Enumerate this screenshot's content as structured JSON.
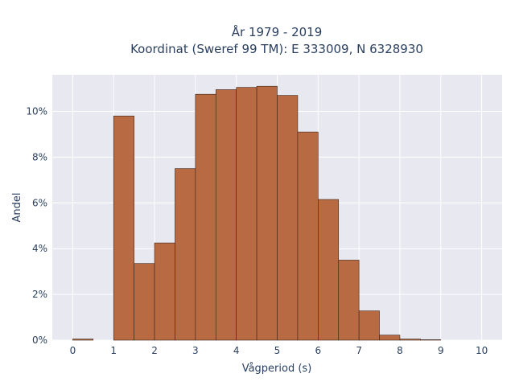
{
  "chart_data": {
    "type": "bar",
    "title_line1": "År 1979 - 2019",
    "title_line2": "Koordinat (Sweref 99 TM): E 333009, N 6328930",
    "xlabel": "Vågperiod (s)",
    "ylabel": "Andel",
    "bin_width": 0.5,
    "xlim": [
      -0.5,
      10.5
    ],
    "ylim": [
      0,
      11.6
    ],
    "xticks": [
      0,
      1,
      2,
      3,
      4,
      5,
      6,
      7,
      8,
      9,
      10
    ],
    "yticks": [
      0,
      2,
      4,
      6,
      8,
      10
    ],
    "ytick_suffix": "%",
    "grid": true,
    "bar_color": "#b86b43",
    "plot_bg": "#e8e8f0",
    "bins": [
      {
        "x0": 0.0,
        "value": 0.05
      },
      {
        "x0": 0.5,
        "value": 0.0
      },
      {
        "x0": 1.0,
        "value": 9.8
      },
      {
        "x0": 1.5,
        "value": 3.35
      },
      {
        "x0": 2.0,
        "value": 4.25
      },
      {
        "x0": 2.5,
        "value": 7.5
      },
      {
        "x0": 3.0,
        "value": 10.75
      },
      {
        "x0": 3.5,
        "value": 10.95
      },
      {
        "x0": 4.0,
        "value": 11.05
      },
      {
        "x0": 4.5,
        "value": 11.1
      },
      {
        "x0": 5.0,
        "value": 10.7
      },
      {
        "x0": 5.5,
        "value": 9.1
      },
      {
        "x0": 6.0,
        "value": 6.15
      },
      {
        "x0": 6.5,
        "value": 3.5
      },
      {
        "x0": 7.0,
        "value": 1.28
      },
      {
        "x0": 7.5,
        "value": 0.22
      },
      {
        "x0": 8.0,
        "value": 0.05
      },
      {
        "x0": 8.5,
        "value": 0.02
      },
      {
        "x0": 9.0,
        "value": 0.0
      },
      {
        "x0": 9.5,
        "value": 0.0
      }
    ]
  }
}
